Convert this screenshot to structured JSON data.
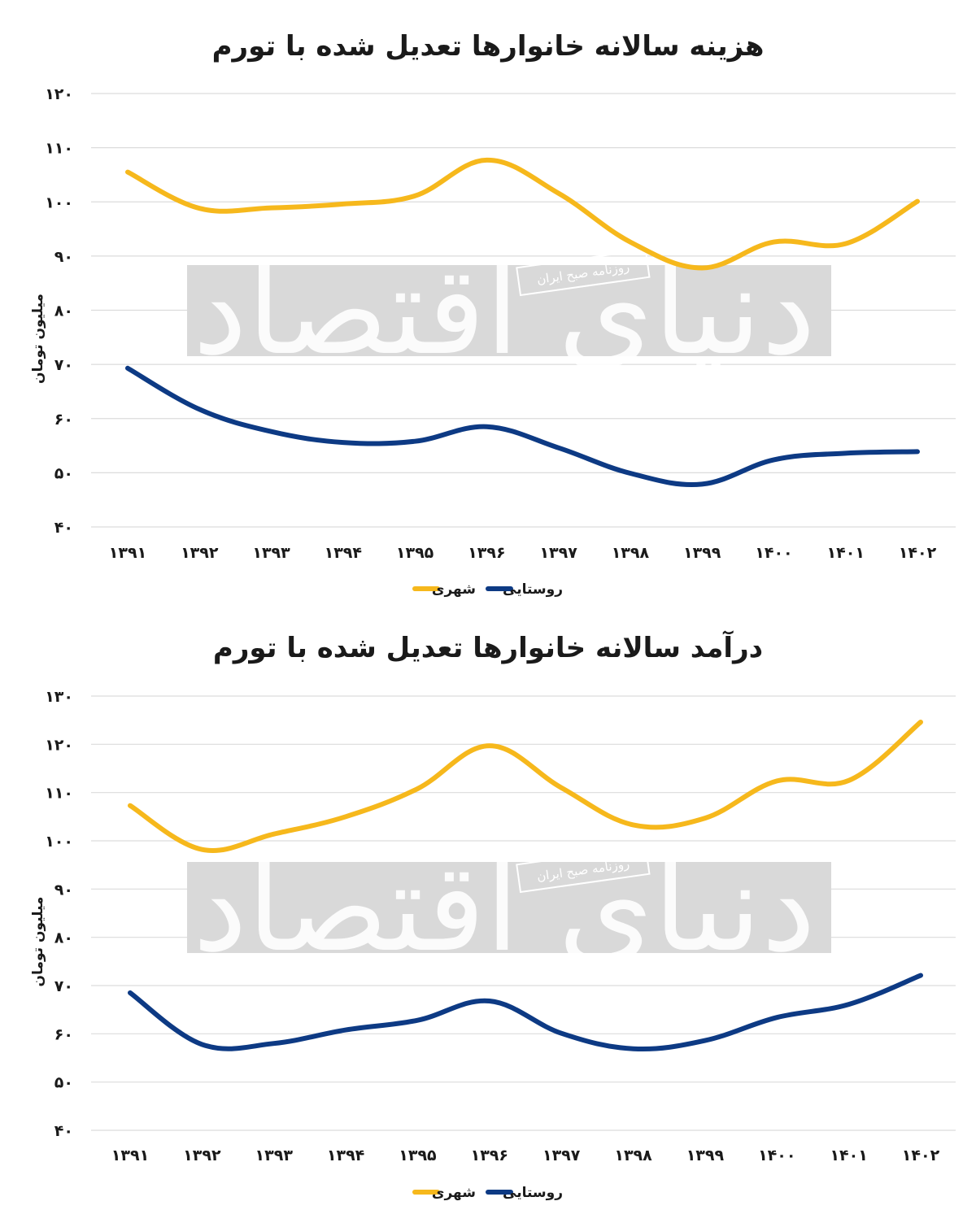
{
  "chart_data": [
    {
      "type": "line",
      "title": "هزینه سالانه خانوارها تعدیل شده با تورم",
      "ylabel": "میلیون تومان",
      "xlabel": "",
      "categories": [
        "۱۳۹۱",
        "۱۳۹۲",
        "۱۳۹۳",
        "۱۳۹۴",
        "۱۳۹۵",
        "۱۳۹۶",
        "۱۳۹۷",
        "۱۳۹۸",
        "۱۳۹۹",
        "۱۴۰۰",
        "۱۴۰۱",
        "۱۴۰۲"
      ],
      "ylim": [
        40,
        120
      ],
      "yticks": [
        40,
        50,
        60,
        70,
        80,
        90,
        100,
        110,
        120
      ],
      "ytick_labels": [
        "۴۰",
        "۵۰",
        "۶۰",
        "۷۰",
        "۸۰",
        "۹۰",
        "۱۰۰",
        "۱۱۰",
        "۱۲۰"
      ],
      "grid": true,
      "legend_position": "bottom",
      "series": [
        {
          "name": "شهری",
          "color": "#F6B81C",
          "values": [
            105.5,
            98.8,
            98.9,
            99.6,
            101.1,
            107.7,
            101.6,
            92.6,
            87.8,
            92.6,
            92.3,
            100.1
          ]
        },
        {
          "name": "روستایی",
          "color": "#0D3A84",
          "values": [
            69.3,
            61.7,
            57.6,
            55.6,
            55.8,
            58.5,
            54.6,
            49.9,
            47.9,
            52.4,
            53.6,
            53.9
          ]
        }
      ]
    },
    {
      "type": "line",
      "title": "درآمد سالانه خانوارها تعدیل شده با تورم",
      "ylabel": "میلیون تومان",
      "xlabel": "",
      "categories": [
        "۱۳۹۱",
        "۱۳۹۲",
        "۱۳۹۳",
        "۱۳۹۴",
        "۱۳۹۵",
        "۱۳۹۶",
        "۱۳۹۷",
        "۱۳۹۸",
        "۱۳۹۹",
        "۱۴۰۰",
        "۱۴۰۱",
        "۱۴۰۲"
      ],
      "ylim": [
        40,
        130
      ],
      "yticks": [
        40,
        50,
        60,
        70,
        80,
        90,
        100,
        110,
        120,
        130
      ],
      "ytick_labels": [
        "۴۰",
        "۵۰",
        "۶۰",
        "۷۰",
        "۸۰",
        "۹۰",
        "۱۰۰",
        "۱۱۰",
        "۱۲۰",
        "۱۳۰"
      ],
      "grid": true,
      "legend_position": "bottom",
      "series": [
        {
          "name": "شهری",
          "color": "#F6B81C",
          "values": [
            107.3,
            98.2,
            101.4,
            105.0,
            110.8,
            119.7,
            111.0,
            103.3,
            104.7,
            112.4,
            112.5,
            124.6
          ]
        },
        {
          "name": "روستایی",
          "color": "#0D3A84",
          "values": [
            68.5,
            57.8,
            58.0,
            60.8,
            62.8,
            66.8,
            60.1,
            56.9,
            58.6,
            63.4,
            66.1,
            72.1
          ]
        }
      ]
    }
  ]
}
